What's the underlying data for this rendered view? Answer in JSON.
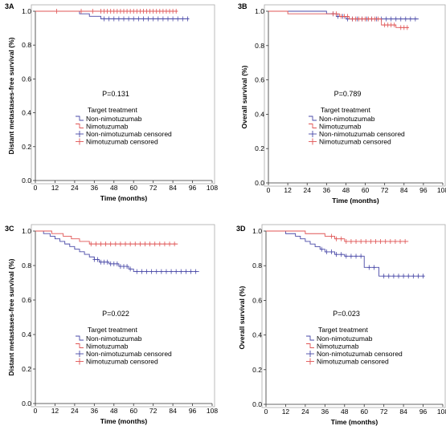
{
  "colors": {
    "non": "#4a4aa8",
    "nim": "#e05555",
    "axis": "#333333",
    "frame": "#aaaaaa"
  },
  "chart_data": [
    {
      "panel": "3A",
      "type": "line",
      "xlabel": "Time (months)",
      "ylabel": "Distant metastases-free survival (%)",
      "xticks": [
        "0",
        "12",
        "24",
        "36",
        "48",
        "60",
        "72",
        "84",
        "96",
        "108"
      ],
      "yticks": [
        "0.0",
        "0.2",
        "0.4",
        "0.6",
        "0.8",
        "1.0"
      ],
      "xlim": [
        0,
        108
      ],
      "ylim": [
        0,
        1.0
      ],
      "p_value": "P=0.131",
      "legend_title": "Target treatment",
      "legend": [
        "Non-nimotuzumab",
        "Nimotuzumab",
        "Non-nimotuzumab censored",
        "Nimotuzumab censored"
      ],
      "series": [
        {
          "name": "Non-nimotuzumab",
          "steps": [
            [
              0,
              1.0
            ],
            [
              27,
              0.985
            ],
            [
              33,
              0.97
            ],
            [
              40,
              0.955
            ],
            [
              94,
              0.955
            ]
          ],
          "censored_x": [
            42,
            45,
            48,
            51,
            54,
            57,
            60,
            63,
            66,
            69,
            72,
            75,
            78,
            81,
            84,
            87,
            90,
            93
          ]
        },
        {
          "name": "Nimotuzumab",
          "steps": [
            [
              0,
              1.0
            ],
            [
              87,
              1.0
            ]
          ],
          "censored_x": [
            13,
            28,
            35,
            40,
            42,
            44,
            46,
            48,
            50,
            52,
            54,
            56,
            58,
            60,
            62,
            64,
            66,
            68,
            70,
            72,
            74,
            76,
            78,
            80,
            82,
            84,
            86
          ]
        }
      ]
    },
    {
      "panel": "3B",
      "type": "line",
      "xlabel": "Time (months)",
      "ylabel": "Overall survival (%)",
      "xticks": [
        "0",
        "12",
        "24",
        "36",
        "48",
        "60",
        "72",
        "84",
        "96",
        "108"
      ],
      "yticks": [
        "0.0",
        "0.2",
        "0.4",
        "0.6",
        "0.8",
        "1.0"
      ],
      "xlim": [
        0,
        108
      ],
      "ylim": [
        0,
        1.0
      ],
      "p_value": "P=0.789",
      "legend_title": "Target treatment",
      "legend": [
        "Non-nimotuzumab",
        "Nimotuzumab",
        "Non-nimotuzumab censored",
        "Nimotuzumab censored"
      ],
      "series": [
        {
          "name": "Non-nimotuzumab",
          "steps": [
            [
              0,
              1.0
            ],
            [
              36,
              0.985
            ],
            [
              42,
              0.97
            ],
            [
              48,
              0.955
            ],
            [
              93,
              0.955
            ]
          ],
          "censored_x": [
            40,
            43,
            46,
            49,
            52,
            55,
            58,
            61,
            64,
            67,
            70,
            73,
            76,
            79,
            82,
            85,
            88,
            91
          ]
        },
        {
          "name": "Nimotuzumab",
          "steps": [
            [
              0,
              1.0
            ],
            [
              12,
              0.985
            ],
            [
              44,
              0.97
            ],
            [
              50,
              0.955
            ],
            [
              70,
              0.92
            ],
            [
              79,
              0.905
            ],
            [
              87,
              0.905
            ]
          ],
          "censored_x": [
            40,
            42,
            45,
            47,
            49,
            52,
            54,
            56,
            58,
            60,
            62,
            64,
            66,
            68,
            72,
            74,
            76,
            78,
            82,
            84,
            86
          ]
        }
      ]
    },
    {
      "panel": "3C",
      "type": "line",
      "xlabel": "Time (months)",
      "ylabel": "Distant metastases-free survival (%)",
      "xticks": [
        "0",
        "12",
        "24",
        "36",
        "48",
        "60",
        "72",
        "84",
        "96",
        "108"
      ],
      "yticks": [
        "0.0",
        "0.2",
        "0.4",
        "0.6",
        "0.8",
        "1.0"
      ],
      "xlim": [
        0,
        108
      ],
      "ylim": [
        0,
        1.0
      ],
      "p_value": "P=0.022",
      "legend_title": "Target treatment",
      "legend": [
        "Non-nimotuzumab",
        "Nimotuzumab",
        "Non-nimotuzumab censored",
        "Nimotuzumab censored"
      ],
      "series": [
        {
          "name": "Non-nimotuzumab",
          "steps": [
            [
              0,
              1.0
            ],
            [
              5,
              0.985
            ],
            [
              9,
              0.97
            ],
            [
              12,
              0.955
            ],
            [
              15,
              0.94
            ],
            [
              18,
              0.925
            ],
            [
              21,
              0.91
            ],
            [
              24,
              0.895
            ],
            [
              27,
              0.88
            ],
            [
              30,
              0.865
            ],
            [
              33,
              0.85
            ],
            [
              36,
              0.835
            ],
            [
              39,
              0.82
            ],
            [
              45,
              0.81
            ],
            [
              51,
              0.795
            ],
            [
              57,
              0.78
            ],
            [
              60,
              0.765
            ],
            [
              100,
              0.765
            ]
          ],
          "censored_x": [
            36,
            38,
            40,
            42,
            44,
            46,
            48,
            50,
            52,
            54,
            56,
            58,
            62,
            65,
            68,
            71,
            74,
            77,
            80,
            83,
            86,
            89,
            92,
            95,
            98
          ]
        },
        {
          "name": "Nimotuzumab",
          "steps": [
            [
              0,
              1.0
            ],
            [
              10,
              0.985
            ],
            [
              17,
              0.97
            ],
            [
              22,
              0.955
            ],
            [
              27,
              0.94
            ],
            [
              33,
              0.925
            ],
            [
              87,
              0.925
            ]
          ],
          "censored_x": [
            34,
            37,
            40,
            43,
            46,
            49,
            52,
            55,
            58,
            61,
            64,
            67,
            70,
            73,
            76,
            79,
            82,
            85
          ]
        }
      ]
    },
    {
      "panel": "3D",
      "type": "line",
      "xlabel": "Time (months)",
      "ylabel": "Overall survival (%)",
      "xticks": [
        "0",
        "12",
        "24",
        "36",
        "48",
        "60",
        "72",
        "84",
        "96",
        "108"
      ],
      "yticks": [
        "0.0",
        "0.2",
        "0.4",
        "0.6",
        "0.8",
        "1.0"
      ],
      "xlim": [
        0,
        108
      ],
      "ylim": [
        0,
        1.0
      ],
      "p_value": "P=0.023",
      "legend_title": "Target treatment",
      "legend": [
        "Non-nimotuzumab",
        "Nimotuzumab",
        "Non-nimotuzumab censored",
        "Nimotuzumab censored"
      ],
      "series": [
        {
          "name": "Non-nimotuzumab",
          "steps": [
            [
              0,
              1.0
            ],
            [
              12,
              0.985
            ],
            [
              18,
              0.97
            ],
            [
              21,
              0.955
            ],
            [
              24,
              0.94
            ],
            [
              27,
              0.925
            ],
            [
              30,
              0.91
            ],
            [
              33,
              0.895
            ],
            [
              36,
              0.88
            ],
            [
              42,
              0.865
            ],
            [
              48,
              0.855
            ],
            [
              60,
              0.79
            ],
            [
              69,
              0.74
            ],
            [
              97,
              0.74
            ]
          ],
          "censored_x": [
            34,
            37,
            40,
            43,
            46,
            49,
            52,
            55,
            58,
            63,
            66,
            72,
            75,
            78,
            81,
            84,
            87,
            90,
            93,
            96
          ]
        },
        {
          "name": "Nimotuzumab",
          "steps": [
            [
              0,
              1.0
            ],
            [
              24,
              0.985
            ],
            [
              36,
              0.97
            ],
            [
              42,
              0.955
            ],
            [
              48,
              0.94
            ],
            [
              87,
              0.94
            ]
          ],
          "censored_x": [
            40,
            43,
            46,
            49,
            52,
            55,
            58,
            61,
            64,
            67,
            70,
            73,
            76,
            79,
            82,
            85
          ]
        }
      ]
    }
  ]
}
